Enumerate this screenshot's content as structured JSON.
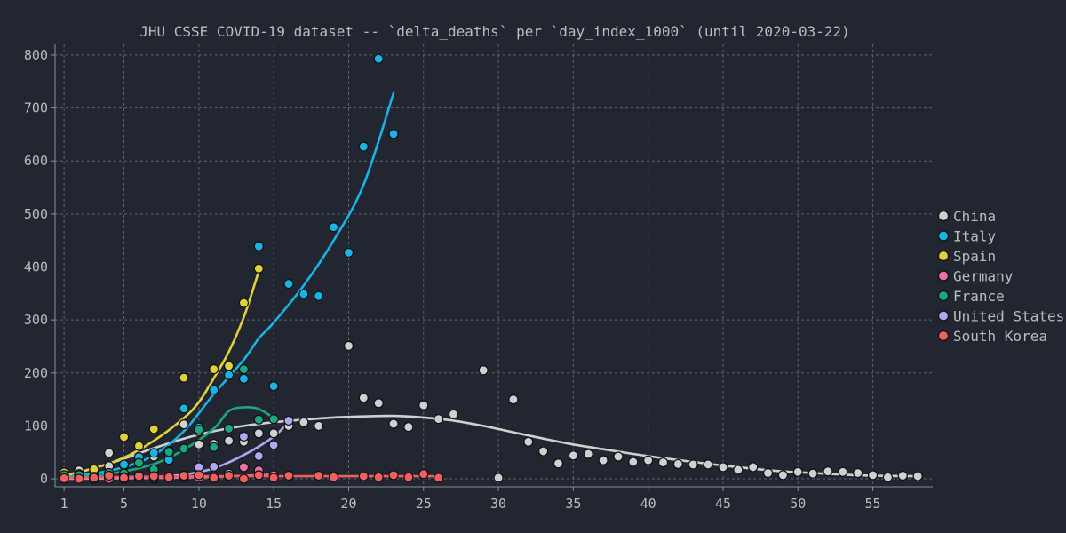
{
  "chart_data": {
    "type": "scatter",
    "title": "JHU CSSE COVID-19 dataset -- `delta_deaths` per `day_index_1000` (until 2020-03-22)",
    "xlabel": "",
    "ylabel": "",
    "xlim": [
      0.4,
      59
    ],
    "ylim": [
      -15,
      820
    ],
    "x_ticks": [
      1,
      5,
      10,
      15,
      20,
      25,
      30,
      35,
      40,
      45,
      50,
      55
    ],
    "y_ticks": [
      0,
      100,
      200,
      300,
      400,
      500,
      600,
      700,
      800
    ],
    "grid": true,
    "legend_position": "right",
    "series": [
      {
        "name": "China",
        "color": "#d0d0d0",
        "points": [
          [
            1,
            8
          ],
          [
            2,
            16
          ],
          [
            3,
            15
          ],
          [
            4,
            24
          ],
          [
            4,
            49
          ],
          [
            5,
            26
          ],
          [
            6,
            38
          ],
          [
            7,
            42
          ],
          [
            8,
            46
          ],
          [
            9,
            103
          ],
          [
            10,
            65
          ],
          [
            11,
            66
          ],
          [
            12,
            72
          ],
          [
            13,
            70
          ],
          [
            14,
            86
          ],
          [
            15,
            86
          ],
          [
            16,
            100
          ],
          [
            17,
            107
          ],
          [
            18,
            100
          ],
          [
            19,
            5
          ],
          [
            20,
            251
          ],
          [
            21,
            153
          ],
          [
            22,
            143
          ],
          [
            23,
            104
          ],
          [
            24,
            98
          ],
          [
            25,
            139
          ],
          [
            26,
            113
          ],
          [
            27,
            122
          ],
          [
            29,
            205
          ],
          [
            30,
            2
          ],
          [
            31,
            150
          ],
          [
            32,
            70
          ],
          [
            33,
            52
          ],
          [
            34,
            29
          ],
          [
            35,
            44
          ],
          [
            36,
            47
          ],
          [
            37,
            35
          ],
          [
            38,
            42
          ],
          [
            39,
            32
          ],
          [
            40,
            35
          ],
          [
            41,
            31
          ],
          [
            42,
            28
          ],
          [
            43,
            27
          ],
          [
            44,
            27
          ],
          [
            45,
            22
          ],
          [
            46,
            17
          ],
          [
            47,
            22
          ],
          [
            48,
            11
          ],
          [
            49,
            7
          ],
          [
            50,
            13
          ],
          [
            51,
            10
          ],
          [
            52,
            14
          ],
          [
            53,
            13
          ],
          [
            54,
            11
          ],
          [
            55,
            7
          ],
          [
            56,
            3
          ],
          [
            57,
            6
          ],
          [
            58,
            5
          ]
        ],
        "trend": [
          [
            1,
            6
          ],
          [
            3,
            20
          ],
          [
            5,
            38
          ],
          [
            7,
            58
          ],
          [
            9,
            76
          ],
          [
            11,
            90
          ],
          [
            13,
            100
          ],
          [
            15,
            107
          ],
          [
            17,
            112
          ],
          [
            19,
            116
          ],
          [
            21,
            118
          ],
          [
            23,
            119
          ],
          [
            25,
            116
          ],
          [
            27,
            110
          ],
          [
            29,
            100
          ],
          [
            31,
            88
          ],
          [
            33,
            76
          ],
          [
            35,
            65
          ],
          [
            37,
            56
          ],
          [
            39,
            47
          ],
          [
            41,
            39
          ],
          [
            43,
            32
          ],
          [
            45,
            25
          ],
          [
            47,
            19
          ],
          [
            49,
            14
          ],
          [
            51,
            11
          ],
          [
            53,
            8
          ],
          [
            55,
            6
          ],
          [
            58,
            5
          ]
        ]
      },
      {
        "name": "Italy",
        "color": "#1ab3e6",
        "points": [
          [
            1,
            1
          ],
          [
            2,
            2
          ],
          [
            3,
            3
          ],
          [
            4,
            7
          ],
          [
            5,
            27
          ],
          [
            6,
            41
          ],
          [
            7,
            49
          ],
          [
            8,
            36
          ],
          [
            9,
            133
          ],
          [
            10,
            97
          ],
          [
            11,
            168
          ],
          [
            12,
            196
          ],
          [
            13,
            189
          ],
          [
            14,
            439
          ],
          [
            15,
            175
          ],
          [
            16,
            368
          ],
          [
            17,
            349
          ],
          [
            18,
            345
          ],
          [
            19,
            475
          ],
          [
            20,
            427
          ],
          [
            21,
            627
          ],
          [
            22,
            793
          ],
          [
            23,
            651
          ]
        ],
        "trend": [
          [
            1,
            3
          ],
          [
            3,
            10
          ],
          [
            5,
            22
          ],
          [
            7,
            45
          ],
          [
            9,
            90
          ],
          [
            11,
            160
          ],
          [
            13,
            225
          ],
          [
            14,
            265
          ],
          [
            15,
            295
          ],
          [
            17,
            365
          ],
          [
            19,
            450
          ],
          [
            21,
            555
          ],
          [
            23,
            728
          ]
        ]
      },
      {
        "name": "Spain",
        "color": "#e0d23a",
        "points": [
          [
            1,
            12
          ],
          [
            2,
            9
          ],
          [
            3,
            18
          ],
          [
            4,
            2
          ],
          [
            5,
            79
          ],
          [
            6,
            62
          ],
          [
            7,
            94
          ],
          [
            8,
            53
          ],
          [
            9,
            191
          ],
          [
            10,
            90
          ],
          [
            11,
            207
          ],
          [
            12,
            213
          ],
          [
            13,
            332
          ],
          [
            14,
            397
          ]
        ],
        "trend": [
          [
            1,
            6
          ],
          [
            3,
            20
          ],
          [
            5,
            40
          ],
          [
            7,
            72
          ],
          [
            9,
            115
          ],
          [
            10,
            145
          ],
          [
            11,
            190
          ],
          [
            12,
            240
          ],
          [
            13,
            305
          ],
          [
            14,
            392
          ]
        ]
      },
      {
        "name": "Germany",
        "color": "#f06fa0",
        "points": [
          [
            1,
            0
          ],
          [
            2,
            0
          ],
          [
            3,
            0
          ],
          [
            4,
            0
          ],
          [
            5,
            0
          ],
          [
            6,
            2
          ],
          [
            7,
            0
          ],
          [
            8,
            3
          ],
          [
            9,
            2
          ],
          [
            10,
            2
          ],
          [
            11,
            2
          ],
          [
            12,
            7
          ],
          [
            13,
            22
          ],
          [
            14,
            16
          ],
          [
            15,
            7
          ]
        ],
        "trend": [
          [
            1,
            0
          ],
          [
            5,
            1
          ],
          [
            10,
            3
          ],
          [
            13,
            6
          ],
          [
            15,
            8
          ]
        ]
      },
      {
        "name": "France",
        "color": "#1aa880",
        "points": [
          [
            1,
            7
          ],
          [
            2,
            7
          ],
          [
            3,
            4
          ],
          [
            4,
            11
          ],
          [
            5,
            10
          ],
          [
            6,
            30
          ],
          [
            7,
            18
          ],
          [
            8,
            51
          ],
          [
            9,
            57
          ],
          [
            10,
            93
          ],
          [
            11,
            60
          ],
          [
            12,
            95
          ],
          [
            13,
            207
          ],
          [
            14,
            112
          ],
          [
            15,
            113
          ]
        ],
        "trend": [
          [
            1,
            2
          ],
          [
            3,
            6
          ],
          [
            5,
            14
          ],
          [
            7,
            28
          ],
          [
            9,
            55
          ],
          [
            11,
            95
          ],
          [
            12,
            128
          ],
          [
            13,
            135
          ],
          [
            14,
            132
          ],
          [
            15,
            115
          ]
        ]
      },
      {
        "name": "United States",
        "color": "#b3a6f0",
        "points": [
          [
            1,
            1
          ],
          [
            3,
            0
          ],
          [
            5,
            3
          ],
          [
            7,
            2
          ],
          [
            8,
            4
          ],
          [
            9,
            5
          ],
          [
            10,
            22
          ],
          [
            11,
            23
          ],
          [
            12,
            10
          ],
          [
            13,
            80
          ],
          [
            14,
            43
          ],
          [
            15,
            64
          ],
          [
            16,
            110
          ]
        ],
        "trend": [
          [
            1,
            1
          ],
          [
            4,
            2
          ],
          [
            7,
            4
          ],
          [
            9,
            8
          ],
          [
            11,
            20
          ],
          [
            13,
            45
          ],
          [
            15,
            80
          ],
          [
            16,
            108
          ]
        ]
      },
      {
        "name": "South Korea",
        "color": "#f06060",
        "points": [
          [
            1,
            1
          ],
          [
            2,
            0
          ],
          [
            3,
            2
          ],
          [
            4,
            6
          ],
          [
            5,
            2
          ],
          [
            6,
            5
          ],
          [
            7,
            5
          ],
          [
            8,
            3
          ],
          [
            9,
            6
          ],
          [
            10,
            7
          ],
          [
            11,
            2
          ],
          [
            12,
            6
          ],
          [
            13,
            0
          ],
          [
            14,
            7
          ],
          [
            15,
            2
          ],
          [
            16,
            6
          ],
          [
            18,
            6
          ],
          [
            19,
            3
          ],
          [
            21,
            5
          ],
          [
            22,
            3
          ],
          [
            23,
            7
          ],
          [
            24,
            3
          ],
          [
            25,
            9
          ],
          [
            26,
            2
          ]
        ],
        "trend": [
          [
            1,
            2
          ],
          [
            6,
            4
          ],
          [
            11,
            5
          ],
          [
            16,
            5
          ],
          [
            21,
            5
          ],
          [
            26,
            5
          ]
        ]
      }
    ]
  }
}
